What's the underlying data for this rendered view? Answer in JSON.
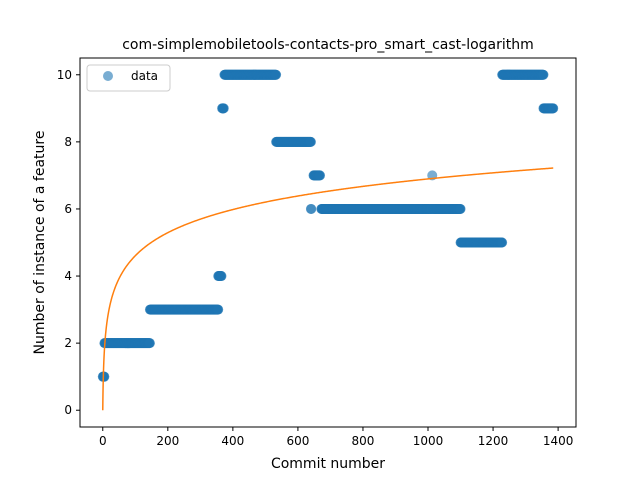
{
  "chart_data": {
    "type": "scatter",
    "title": "com-simplemobiletools-contacts-pro_smart_cast-logarithm",
    "xlabel": "Commit number",
    "ylabel": "Number of instance of a feature",
    "xlim": [
      -70,
      1455
    ],
    "ylim": [
      -0.5,
      10.5
    ],
    "xticks": [
      0,
      200,
      400,
      600,
      800,
      1000,
      1200,
      1400
    ],
    "yticks": [
      0,
      2,
      4,
      6,
      8,
      10
    ],
    "grid": false,
    "legend_placement": "top-left",
    "series": [
      {
        "name": "data",
        "kind": "scatter",
        "color": "#1f77b4",
        "segments": [
          {
            "x_start": 0,
            "x_end": 5,
            "y": 1
          },
          {
            "x_start": 5,
            "x_end": 145,
            "y": 2
          },
          {
            "x_start": 145,
            "x_end": 355,
            "y": 3
          },
          {
            "x_start": 355,
            "x_end": 365,
            "y": 4
          },
          {
            "x_start": 367,
            "x_end": 372,
            "y": 9
          },
          {
            "x_start": 374,
            "x_end": 533,
            "y": 10
          },
          {
            "x_start": 533,
            "x_end": 640,
            "y": 8
          },
          {
            "x_start": 640,
            "x_end": 641,
            "y": 6
          },
          {
            "x_start": 648,
            "x_end": 668,
            "y": 7
          },
          {
            "x_start": 672,
            "x_end": 1012,
            "y": 6
          },
          {
            "x_start": 1013,
            "x_end": 1013,
            "y": 7
          },
          {
            "x_start": 1015,
            "x_end": 1100,
            "y": 6
          },
          {
            "x_start": 1100,
            "x_end": 1228,
            "y": 5
          },
          {
            "x_start": 1228,
            "x_end": 1355,
            "y": 10
          },
          {
            "x_start": 1355,
            "x_end": 1385,
            "y": 9
          }
        ]
      },
      {
        "name": "",
        "kind": "line",
        "color": "#ff7f0e",
        "model": "logarithmic",
        "points": [
          [
            0,
            0
          ],
          [
            1,
            0.69
          ],
          [
            2,
            1.09
          ],
          [
            5,
            1.78
          ],
          [
            10,
            2.39
          ],
          [
            20,
            3.03
          ],
          [
            40,
            3.69
          ],
          [
            80,
            4.37
          ],
          [
            150,
            4.99
          ],
          [
            250,
            5.5
          ],
          [
            400,
            5.97
          ],
          [
            600,
            6.38
          ],
          [
            800,
            6.67
          ],
          [
            1000,
            6.89
          ],
          [
            1200,
            7.07
          ],
          [
            1385,
            7.22
          ]
        ]
      }
    ]
  }
}
